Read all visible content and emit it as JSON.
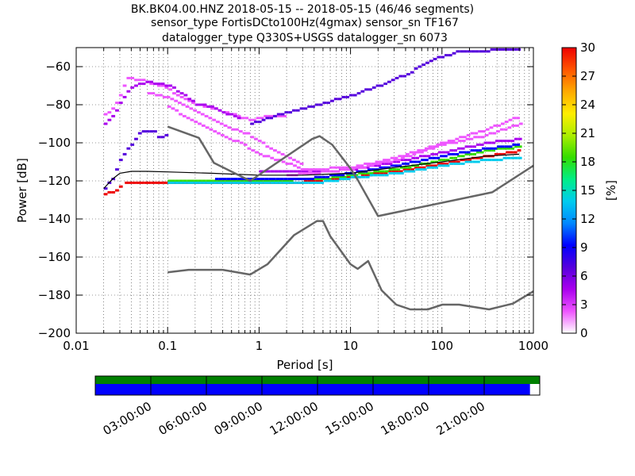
{
  "title_lines": [
    "BK.BK04.00.HNZ   2018-05-15 -- 2018-05-15  (46/46 segments)",
    "sensor_type FortisDCto100Hz(4gmax) sensor_sn TF167",
    "datalogger_type Q330S+USGS datalogger_sn 6073"
  ],
  "chart_data": {
    "type": "heatmap",
    "title": "BK.BK04.00.HNZ   2018-05-15 -- 2018-05-15  (46/46 segments)",
    "xlabel": "Period [s]",
    "ylabel": "Power [dB]",
    "xscale": "log",
    "xlim": [
      0.01,
      1000
    ],
    "ylim": [
      -200,
      -50
    ],
    "x_ticks": [
      0.01,
      0.1,
      1,
      10,
      100,
      1000
    ],
    "x_tick_labels": [
      "0.01",
      "0.1",
      "1",
      "10",
      "100",
      "1000"
    ],
    "y_ticks": [
      -200,
      -180,
      -160,
      -140,
      -120,
      -100,
      -80,
      -60
    ],
    "y_tick_labels": [
      "−200",
      "−180",
      "−160",
      "−140",
      "−120",
      "−100",
      "−80",
      "−60"
    ],
    "grid": true,
    "colorbar": {
      "label": "[%]",
      "range": [
        0,
        30
      ],
      "ticks": [
        0,
        3,
        6,
        9,
        12,
        15,
        18,
        21,
        24,
        27,
        30
      ],
      "tick_labels": [
        "0",
        "3",
        "6",
        "9",
        "12",
        "15",
        "18",
        "21",
        "24",
        "27",
        "30"
      ],
      "colors": [
        "#ffffff",
        "#ee55ff",
        "#aa00ee",
        "#5500dd",
        "#0000ff",
        "#0088ff",
        "#00ccee",
        "#00ee88",
        "#33dd00",
        "#aaee00",
        "#ffee00",
        "#ffaa00",
        "#ff5500",
        "#ee0000"
      ]
    },
    "noise_models": [
      {
        "name": "high",
        "points": [
          [
            0.1,
            -91.5
          ],
          [
            0.22,
            -97.4
          ],
          [
            0.32,
            -110.5
          ],
          [
            0.8,
            -120
          ],
          [
            3.8,
            -98
          ],
          [
            4.6,
            -96.5
          ],
          [
            6.3,
            -101
          ],
          [
            10,
            -113.5
          ],
          [
            12,
            -119.5
          ],
          [
            20,
            -138.5
          ],
          [
            354,
            -126
          ],
          [
            1000,
            -112
          ]
        ]
      },
      {
        "name": "low",
        "points": [
          [
            0.1,
            -168
          ],
          [
            0.17,
            -166.7
          ],
          [
            0.4,
            -166.7
          ],
          [
            0.8,
            -169.2
          ],
          [
            1.24,
            -163.7
          ],
          [
            2.4,
            -148.6
          ],
          [
            4.3,
            -141.1
          ],
          [
            5,
            -141.1
          ],
          [
            6,
            -149
          ],
          [
            10,
            -163.8
          ],
          [
            12,
            -166.2
          ],
          [
            15.6,
            -162.1
          ],
          [
            21.9,
            -177.5
          ],
          [
            31.6,
            -185
          ],
          [
            45,
            -187.5
          ],
          [
            70,
            -187.5
          ],
          [
            101,
            -185
          ],
          [
            154,
            -185
          ],
          [
            328,
            -187.5
          ],
          [
            600,
            -184.4
          ],
          [
            1000,
            -178
          ]
        ]
      }
    ],
    "mode_line": [
      [
        0.02,
        -124
      ],
      [
        0.025,
        -119
      ],
      [
        0.03,
        -116
      ],
      [
        0.04,
        -115
      ],
      [
        0.06,
        -115
      ],
      [
        0.1,
        -115.3
      ],
      [
        0.3,
        -116
      ],
      [
        1,
        -117
      ],
      [
        3,
        -117
      ],
      [
        10,
        -116
      ],
      [
        30,
        -113
      ],
      [
        100,
        -110
      ],
      [
        300,
        -107
      ],
      [
        700,
        -106
      ]
    ],
    "psd_bands": [
      {
        "name": "floor",
        "color": "#ee0000",
        "points": [
          [
            0.034,
            -121
          ],
          [
            1,
            -121
          ],
          [
            3,
            -120.5
          ],
          [
            10,
            -118
          ],
          [
            30,
            -115
          ],
          [
            100,
            -111
          ],
          [
            300,
            -107
          ],
          [
            700,
            -104
          ]
        ]
      },
      {
        "name": "band-a",
        "color": "#33dd00",
        "points": [
          [
            0.1,
            -120
          ],
          [
            1,
            -120
          ],
          [
            5,
            -119
          ],
          [
            10,
            -117
          ],
          [
            30,
            -114
          ],
          [
            100,
            -109
          ],
          [
            300,
            -104
          ],
          [
            700,
            -102
          ]
        ]
      },
      {
        "name": "band-b",
        "color": "#0000ff",
        "points": [
          [
            0.3,
            -119
          ],
          [
            3,
            -119
          ],
          [
            10,
            -116
          ],
          [
            30,
            -112
          ],
          [
            100,
            -107
          ],
          [
            300,
            -103
          ],
          [
            700,
            -101
          ]
        ]
      },
      {
        "name": "band-c",
        "color": "#00ccee",
        "points": [
          [
            0.1,
            -121.5
          ],
          [
            1,
            -121.5
          ],
          [
            5,
            -120.5
          ],
          [
            10,
            -118.5
          ],
          [
            30,
            -116
          ],
          [
            100,
            -112
          ],
          [
            300,
            -109
          ],
          [
            700,
            -108
          ]
        ]
      },
      {
        "name": "band-d",
        "color": "#aa00ee",
        "points": [
          [
            1,
            -115
          ],
          [
            5,
            -115
          ],
          [
            10,
            -114
          ],
          [
            30,
            -110
          ],
          [
            100,
            -105
          ],
          [
            300,
            -100
          ],
          [
            700,
            -98
          ]
        ]
      },
      {
        "name": "band-e",
        "color": "#ee55ff",
        "points": [
          [
            3,
            -114
          ],
          [
            10,
            -113
          ],
          [
            30,
            -108
          ],
          [
            100,
            -100
          ],
          [
            300,
            -93
          ],
          [
            700,
            -86
          ]
        ]
      },
      {
        "name": "band-f",
        "color": "#ee55ff",
        "points": [
          [
            2,
            -117
          ],
          [
            10,
            -114
          ],
          [
            30,
            -109
          ],
          [
            100,
            -101
          ],
          [
            300,
            -96
          ],
          [
            700,
            -90
          ]
        ]
      },
      {
        "name": "left-low",
        "color": "#ee0000",
        "points": [
          [
            0.02,
            -127
          ],
          [
            0.027,
            -125
          ],
          [
            0.031,
            -121
          ]
        ]
      },
      {
        "name": "left-rise",
        "color": "#5500dd",
        "points": [
          [
            0.02,
            -124
          ],
          [
            0.025,
            -118
          ],
          [
            0.03,
            -108
          ],
          [
            0.04,
            -100
          ],
          [
            0.05,
            -94
          ],
          [
            0.07,
            -94
          ],
          [
            0.08,
            -98
          ],
          [
            0.1,
            -95
          ]
        ]
      },
      {
        "name": "hump-1",
        "color": "#ee55ff",
        "points": [
          [
            0.02,
            -85
          ],
          [
            0.025,
            -82
          ],
          [
            0.03,
            -74
          ],
          [
            0.035,
            -66
          ],
          [
            0.05,
            -67
          ],
          [
            0.08,
            -70
          ],
          [
            0.1,
            -72
          ],
          [
            0.13,
            -76
          ],
          [
            0.2,
            -80
          ],
          [
            0.3,
            -82
          ],
          [
            0.5,
            -85
          ],
          [
            0.8,
            -88
          ],
          [
            1.2,
            -86
          ],
          [
            2,
            -86
          ]
        ]
      },
      {
        "name": "hump-2",
        "color": "#aa00ee",
        "points": [
          [
            0.02,
            -90
          ],
          [
            0.025,
            -85
          ],
          [
            0.03,
            -78
          ],
          [
            0.04,
            -70
          ],
          [
            0.06,
            -68
          ],
          [
            0.1,
            -70
          ],
          [
            0.15,
            -75
          ],
          [
            0.2,
            -80
          ],
          [
            0.3,
            -81
          ],
          [
            0.4,
            -84
          ],
          [
            0.6,
            -87
          ]
        ]
      },
      {
        "name": "hump-3",
        "color": "#ee55ff",
        "points": [
          [
            0.06,
            -74
          ],
          [
            0.1,
            -76
          ],
          [
            0.2,
            -84
          ],
          [
            0.4,
            -91
          ],
          [
            0.7,
            -95
          ],
          [
            1.2,
            -102
          ],
          [
            2,
            -108
          ],
          [
            3,
            -112
          ]
        ]
      },
      {
        "name": "hump-4",
        "color": "#ee55ff",
        "points": [
          [
            0.09,
            -80
          ],
          [
            0.15,
            -86
          ],
          [
            0.3,
            -94
          ],
          [
            0.6,
            -100
          ],
          [
            1,
            -106
          ],
          [
            2,
            -111
          ],
          [
            3.5,
            -115
          ]
        ]
      },
      {
        "name": "rising-line",
        "color": "#5500dd",
        "points": [
          [
            0.8,
            -90
          ],
          [
            1.2,
            -87
          ],
          [
            2,
            -84
          ],
          [
            5,
            -79
          ],
          [
            10,
            -75
          ],
          [
            20,
            -70
          ],
          [
            40,
            -64
          ],
          [
            70,
            -57
          ],
          [
            150,
            -52
          ],
          [
            700,
            -51
          ]
        ]
      }
    ]
  },
  "timeline": {
    "tick_labels": [
      "03:00:00",
      "06:00:00",
      "09:00:00",
      "12:00:00",
      "15:00:00",
      "18:00:00",
      "21:00:00"
    ],
    "top_color": "#008000",
    "bottom_color": "#0000ff",
    "bottom_fill_fraction": 0.978
  }
}
